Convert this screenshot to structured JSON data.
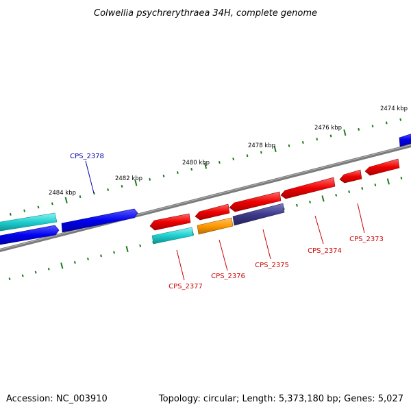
{
  "title": "Colwellia psychrerythraea 34H, complete genome",
  "footer": {
    "accession": "Accession: NC_003910",
    "summary": "Topology: circular; Length: 5,373,180 bp; Genes: 5,027"
  },
  "ticks": [
    {
      "label": "2474 kbp"
    },
    {
      "label": "2476 kbp"
    },
    {
      "label": "2478 kbp"
    },
    {
      "label": "2480 kbp"
    },
    {
      "label": "2482 kbp"
    },
    {
      "label": "2484 kbp"
    }
  ],
  "gene_labels": [
    {
      "label": "CPS_2378",
      "color": "#0000aa"
    },
    {
      "label": "CPS_2377",
      "color": "#cc0000"
    },
    {
      "label": "CPS_2376",
      "color": "#cc0000"
    },
    {
      "label": "CPS_2375",
      "color": "#cc0000"
    },
    {
      "label": "CPS_2374",
      "color": "#cc0000"
    },
    {
      "label": "CPS_2373",
      "color": "#cc0000"
    }
  ],
  "colors": {
    "backbone": "#7a7a7a",
    "tick": "#1a7a1a",
    "forward": "#0000ee",
    "reverse": "#ee0000",
    "cyan": "#1ecece",
    "orange": "#ff9900",
    "purple": "#3d3a8a"
  }
}
